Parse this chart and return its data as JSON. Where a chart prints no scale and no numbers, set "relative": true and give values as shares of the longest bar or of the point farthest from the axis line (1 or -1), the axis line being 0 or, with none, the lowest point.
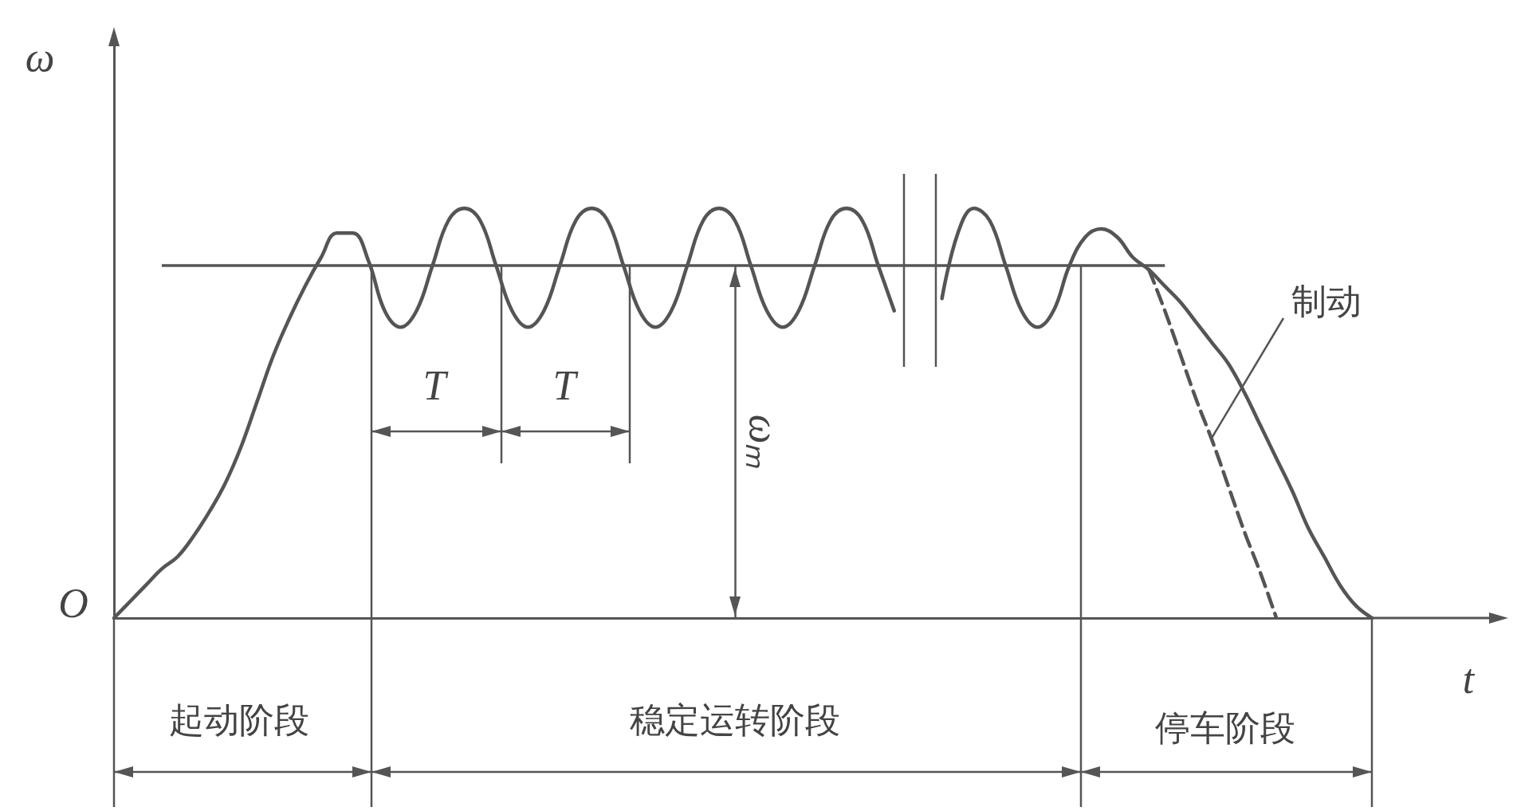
{
  "chart_data": {
    "type": "line",
    "relative": true,
    "xlabel": "t",
    "ylabel": "ω",
    "grid": false,
    "marker": "none",
    "categories": [
      null,
      null,
      null,
      null,
      null,
      null,
      null,
      null,
      null,
      null,
      null,
      null,
      null,
      null,
      null,
      null,
      null,
      null,
      null,
      null,
      null,
      null,
      null,
      null,
      null,
      null,
      null,
      null,
      null,
      null,
      null,
      null,
      null,
      null,
      null,
      null,
      null,
      null,
      null,
      null,
      null,
      null,
      null,
      null,
      null,
      null,
      null,
      null,
      null,
      null,
      null,
      null,
      null,
      null,
      null,
      null,
      null,
      null,
      null,
      null,
      null,
      null,
      null,
      null,
      null,
      null,
      null,
      null,
      null,
      null,
      null,
      null,
      null,
      null,
      null,
      null,
      null,
      null,
      null,
      null
    ],
    "series": [
      {
        "color": "#555555",
        "line_style": "solid",
        "values": [
          0,
          0.04,
          0.08,
          0.12,
          0.15,
          0.2,
          0.26,
          0.33,
          0.42,
          0.53,
          0.64,
          0.73,
          0.81,
          0.88,
          0.94,
          0.94,
          0.87,
          0.75,
          0.71,
          0.75,
          0.86,
          0.97,
          1,
          0.97,
          0.86,
          0.75,
          0.71,
          0.75,
          0.86,
          0.97,
          1,
          0.97,
          0.86,
          0.75,
          0.71,
          0.75,
          0.86,
          0.97,
          1,
          0.97,
          0.86,
          0.75,
          0.71,
          0.75,
          0.86,
          0.97,
          1,
          0.97,
          0.86,
          0.75,
          null,
          null,
          0.78,
          0.94,
          1,
          0.97,
          0.86,
          0.75,
          0.71,
          0.75,
          0.86,
          0.93,
          0.95,
          0.93,
          0.88,
          0.85,
          0.81,
          0.77,
          0.72,
          0.67,
          0.62,
          0.55,
          0.47,
          0.39,
          0.31,
          0.22,
          0.15,
          0.08,
          0.03,
          0
        ]
      },
      {
        "color": "#555555",
        "line_style": "dashed",
        "values": [
          null,
          null,
          null,
          null,
          null,
          null,
          null,
          null,
          null,
          null,
          null,
          null,
          null,
          null,
          null,
          null,
          null,
          null,
          null,
          null,
          null,
          null,
          null,
          null,
          null,
          null,
          null,
          null,
          null,
          null,
          null,
          null,
          null,
          null,
          null,
          null,
          null,
          null,
          null,
          null,
          null,
          null,
          null,
          null,
          null,
          null,
          null,
          null,
          null,
          null,
          null,
          null,
          null,
          null,
          null,
          null,
          null,
          null,
          null,
          null,
          null,
          null,
          null,
          null,
          null,
          0.85,
          0.75,
          0.64,
          0.53,
          0.43,
          0.32,
          0.21,
          0.11,
          0,
          null,
          null,
          null,
          null,
          null,
          null
        ]
      }
    ],
    "ref_lines": [
      {
        "axis": "y",
        "value": 0.86,
        "label": "ωₘ",
        "color": "#555555"
      }
    ],
    "annotations": [
      "O",
      "T",
      "T",
      "制动",
      "起动阶段",
      "稳定运转阶段",
      "停车阶段"
    ]
  }
}
